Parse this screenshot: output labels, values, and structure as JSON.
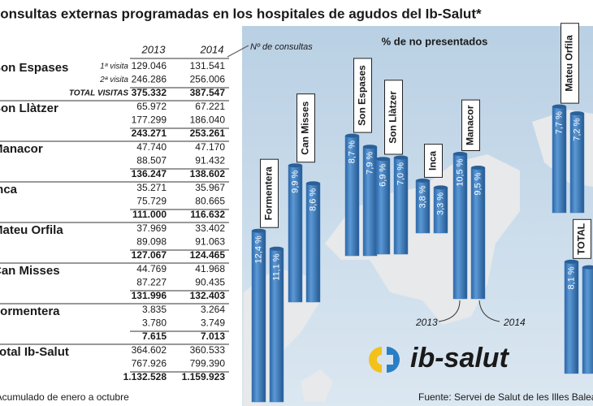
{
  "title": "Consultas externas programadas en los hospitales de agudos del Ib-Salut*",
  "table": {
    "columns": [
      "2013",
      "2014"
    ],
    "row_labels": [
      "1ª visita",
      "2ª visita",
      "TOTAL VISITAS"
    ],
    "rows": [
      {
        "name": "Son Espases",
        "values": [
          [
            "129.046",
            "131.541"
          ],
          [
            "246.286",
            "256.006"
          ],
          [
            "375.332",
            "387.547"
          ]
        ]
      },
      {
        "name": "Son Llàtzer",
        "values": [
          [
            "65.972",
            "67.221"
          ],
          [
            "177.299",
            "186.040"
          ],
          [
            "243.271",
            "253.261"
          ]
        ]
      },
      {
        "name": "Manacor",
        "values": [
          [
            "47.740",
            "47.170"
          ],
          [
            "88.507",
            "91.432"
          ],
          [
            "136.247",
            "138.602"
          ]
        ]
      },
      {
        "name": "Inca",
        "values": [
          [
            "35.271",
            "35.967"
          ],
          [
            "75.729",
            "80.665"
          ],
          [
            "111.000",
            "116.632"
          ]
        ]
      },
      {
        "name": "Mateu Orfila",
        "values": [
          [
            "37.969",
            "33.402"
          ],
          [
            "89.098",
            "91.063"
          ],
          [
            "127.067",
            "124.465"
          ]
        ]
      },
      {
        "name": "Can Misses",
        "values": [
          [
            "44.769",
            "41.968"
          ],
          [
            "87.227",
            "90.435"
          ],
          [
            "131.996",
            "132.403"
          ]
        ]
      },
      {
        "name": "Formentera",
        "values": [
          [
            "3.835",
            "3.264"
          ],
          [
            "3.780",
            "3.749"
          ],
          [
            "7.615",
            "7.013"
          ]
        ]
      },
      {
        "name": "Total  Ib-Salut",
        "values": [
          [
            "364.602",
            "360.533"
          ],
          [
            "767.926",
            "799.390"
          ],
          [
            "1.132.528",
            "1.159.923"
          ]
        ]
      }
    ]
  },
  "annotation": "Nº de consultas",
  "chart_data": {
    "type": "bar",
    "title": "% de no presentados",
    "categories": [
      "Formentera",
      "Can Misses",
      "Son Espases",
      "Son Llàtzer",
      "Inca",
      "Manacor",
      "Mateu Orfila",
      "TOTAL"
    ],
    "series": [
      {
        "name": "2013",
        "color": "#3f7fc1",
        "values": [
          12.4,
          9.9,
          8.7,
          6.9,
          3.8,
          10.5,
          7.7,
          8.1
        ],
        "value_labels": [
          "12,4 %",
          "9,9 %",
          "8,7 %",
          "6,9 %",
          "3,8 %",
          "10,5 %",
          "7,7 %",
          "8,1 %"
        ]
      },
      {
        "name": "2014",
        "color": "#3f7fc1",
        "values": [
          11.1,
          8.6,
          7.9,
          7.0,
          3.3,
          9.5,
          7.2,
          7.7
        ],
        "value_labels": [
          "11,1 %",
          "8,6 %",
          "7,9 %",
          "7,0 %",
          "3,3 %",
          "9,5 %",
          "7,2 %",
          null
        ]
      }
    ]
  },
  "footnote": "*Acumulado de enero a octubre",
  "source": "Fuente: Servei de Salut de les Illes Balears",
  "logo": "ib-salut"
}
